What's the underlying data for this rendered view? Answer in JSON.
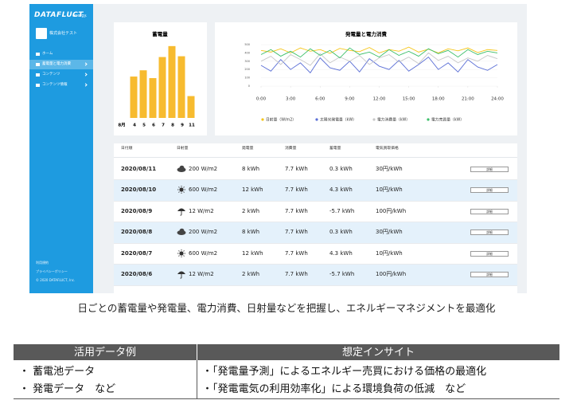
{
  "sidebar": {
    "logo": "DATAFLUCT",
    "logo_sub": "energy.",
    "company": "株式会社テスト",
    "menu": [
      "ホーム",
      "蓄電量と電力消費",
      "コンテンツ",
      "コンテンツ情報"
    ],
    "active": 1,
    "footer": [
      "利用規約",
      "プライバシーポリシー",
      "© 2020 DATAFLUCT, Inc."
    ]
  },
  "bar_chart": {
    "type": "bar",
    "title": "蓄電量",
    "x_label": "8月",
    "categories": [
      "4",
      "5",
      "6",
      "7",
      "8",
      "9",
      "11"
    ],
    "values": [
      53,
      61,
      51,
      78,
      92,
      79,
      28
    ],
    "color": "#f7bb2f",
    "ylim": [
      0,
      100
    ]
  },
  "line_chart": {
    "type": "line",
    "title": "発電量と電力消費",
    "x": [
      0,
      1,
      2,
      3,
      4,
      5,
      6,
      7,
      8,
      9,
      10,
      11,
      12,
      13,
      14,
      15,
      16,
      17,
      18,
      19,
      20,
      21,
      22,
      23,
      24
    ],
    "xlim": [
      0,
      24
    ],
    "xticks": [
      {
        "value": 0,
        "label": "0:00"
      },
      {
        "value": 3,
        "label": "3:00"
      },
      {
        "value": 6,
        "label": "6:00"
      },
      {
        "value": 9,
        "label": "9:00"
      },
      {
        "value": 12,
        "label": "12:00"
      },
      {
        "value": 15,
        "label": "15:00"
      },
      {
        "value": 18,
        "label": "18:00"
      },
      {
        "value": 21,
        "label": "21:00"
      },
      {
        "value": 24,
        "label": "24:00"
      }
    ],
    "ylim": [
      0,
      500
    ],
    "yticks": [
      0,
      100,
      200,
      300,
      400,
      500
    ],
    "series": [
      {
        "name": "日射量（W/m2）",
        "color": "#f5c518",
        "values": [
          430,
          410,
          450,
          400,
          460,
          420,
          440,
          395,
          455,
          430,
          415,
          465,
          400,
          440,
          420,
          470,
          410,
          445,
          400,
          450,
          425,
          460,
          405,
          440,
          430
        ]
      },
      {
        "name": "太陽光発電量（kW）",
        "color": "#5b6fd6",
        "values": [
          250,
          180,
          320,
          200,
          280,
          160,
          340,
          220,
          190,
          300,
          170,
          330,
          240,
          200,
          310,
          180,
          260,
          350,
          200,
          280,
          170,
          320,
          230,
          190,
          260
        ]
      },
      {
        "name": "電力消費量（kW）",
        "color": "#c8c8c8",
        "values": [
          300,
          360,
          260,
          380,
          320,
          250,
          390,
          280,
          350,
          300,
          370,
          260,
          340,
          380,
          290,
          350,
          270,
          400,
          310,
          360,
          280,
          340,
          300,
          370,
          330
        ]
      },
      {
        "name": "電力売買量（kW）",
        "color": "#3cc06a",
        "values": [
          380,
          440,
          360,
          420,
          350,
          450,
          370,
          430,
          340,
          460,
          380,
          410,
          350,
          440,
          370,
          420,
          360,
          450,
          390,
          430,
          350,
          440,
          380,
          420,
          400
        ]
      }
    ]
  },
  "table": {
    "columns": [
      "日付順",
      "日射量",
      "発電量",
      "消費量",
      "蓄電量",
      "電気買取価格"
    ],
    "rows": [
      {
        "date": "2020/08/11",
        "icon": "cloud",
        "irradiance": "200 W/m2",
        "generation": "8 kWh",
        "consumption": "7.7 kWh",
        "storage": "0.3 kWh",
        "price": "30円/kWh",
        "action": "詳細"
      },
      {
        "date": "2020/08/10",
        "icon": "sun",
        "irradiance": "600 W/m2",
        "generation": "12 kWh",
        "consumption": "7.7 kWh",
        "storage": "4.3 kWh",
        "price": "10円/kWh",
        "action": "詳細"
      },
      {
        "date": "2020/08/9",
        "icon": "rain",
        "irradiance": "12 W/m2",
        "generation": "2 kWh",
        "consumption": "7.7 kWh",
        "storage": "-5.7 kWh",
        "price": "100円/kWh",
        "action": "詳細"
      },
      {
        "date": "2020/08/8",
        "icon": "cloud",
        "irradiance": "200 W/m2",
        "generation": "8 kWh",
        "consumption": "7.7 kWh",
        "storage": "0.3 kWh",
        "price": "30円/kWh",
        "action": "詳細"
      },
      {
        "date": "2020/08/7",
        "icon": "sun",
        "irradiance": "600 W/m2",
        "generation": "12 kWh",
        "consumption": "7.7 kWh",
        "storage": "4.3 kWh",
        "price": "10円/kWh",
        "action": "詳細"
      },
      {
        "date": "2020/08/6",
        "icon": "rain",
        "irradiance": "12 W/m2",
        "generation": "2 kWh",
        "consumption": "7.7 kWh",
        "storage": "-5.7 kWh",
        "price": "100円/kWh",
        "action": "詳細"
      }
    ]
  },
  "caption": "日ごとの蓄電量や発電量、電力消費、日射量などを把握し、エネルギーマネジメントを最適化",
  "insight_table": {
    "headers": [
      "活用データ例",
      "想定インサイト"
    ],
    "rows": [
      [
        "・ 蓄電池データ",
        "・「発電量予測」によるエネルギー売買における価格の最適化"
      ],
      [
        "・ 発電データ　など",
        "・「発電電気の利用効率化」による環境負荷の低減　など"
      ]
    ]
  }
}
